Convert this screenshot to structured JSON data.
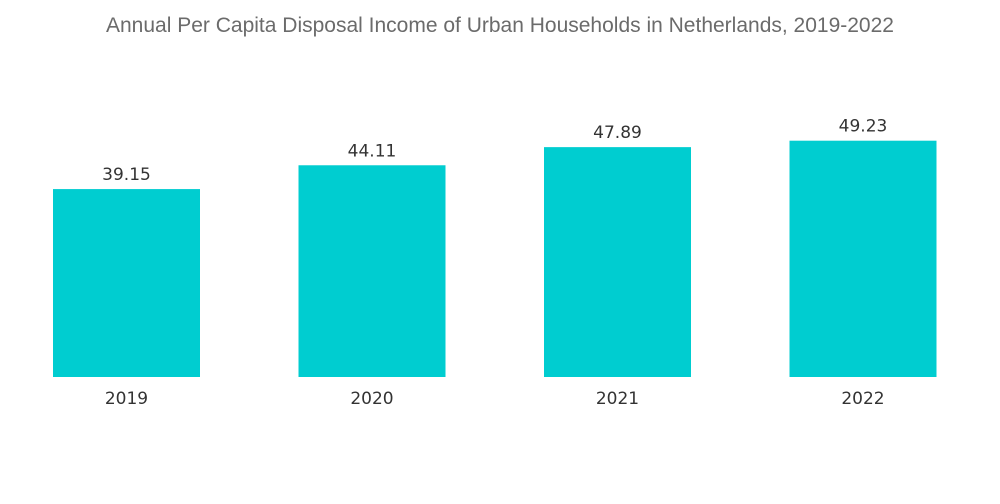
{
  "chart_data": {
    "type": "bar",
    "title": "Annual Per Capita Disposal Income of Urban Households in Netherlands, 2019-2022",
    "categories": [
      "2019",
      "2020",
      "2021",
      "2022"
    ],
    "values": [
      39.15,
      44.11,
      47.89,
      49.23
    ],
    "value_labels": [
      "39.15",
      "44.11",
      "47.89",
      "49.23"
    ],
    "xlabel": "",
    "ylabel": "",
    "ylim": [
      0,
      60
    ],
    "grid": false,
    "legend": "none",
    "bar_color": "#00cdd0"
  }
}
